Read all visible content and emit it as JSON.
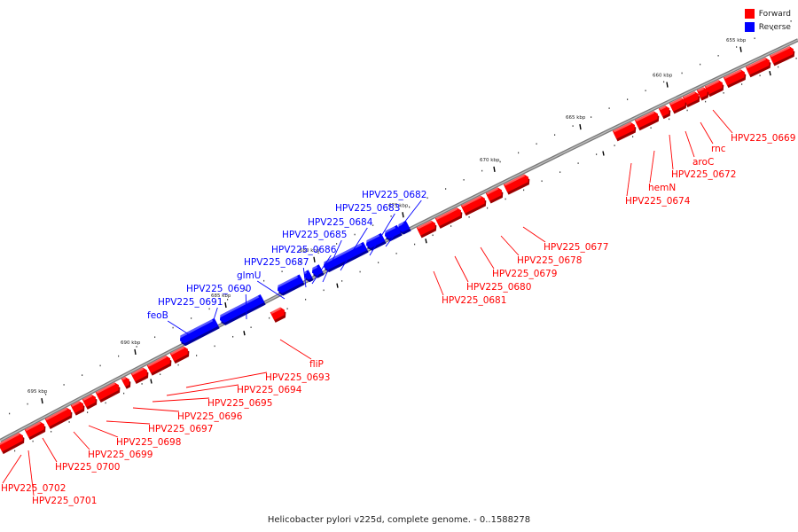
{
  "legend": {
    "forward_label": "Forward",
    "reverse_label": "Reverse",
    "forward_color": "#ff0000",
    "reverse_color": "#0000ff"
  },
  "caption": "Helicobacter pylori v225d, complete genome. - 0..1588278",
  "ruler": {
    "unit": "kbp",
    "ticks": [
      {
        "kbp": 655,
        "label": "655 kbp"
      },
      {
        "kbp": 660,
        "label": "660 kbp"
      },
      {
        "kbp": 665,
        "label": "665 kbp"
      },
      {
        "kbp": 670,
        "label": "670 kbp"
      },
      {
        "kbp": 675,
        "label": "675 kbp"
      },
      {
        "kbp": 680,
        "label": "680 kbp"
      },
      {
        "kbp": 685,
        "label": "685 kbp"
      },
      {
        "kbp": 690,
        "label": "690 kbp"
      },
      {
        "kbp": 695,
        "label": "695 kbp"
      }
    ]
  },
  "genes": [
    {
      "label": "HPV225_0669",
      "strand": "forward"
    },
    {
      "label": "rnc",
      "strand": "forward"
    },
    {
      "label": "aroC",
      "strand": "forward"
    },
    {
      "label": "HPV225_0672",
      "strand": "forward"
    },
    {
      "label": "hemN",
      "strand": "forward"
    },
    {
      "label": "HPV225_0674",
      "strand": "forward"
    },
    {
      "label": "HPV225_0677",
      "strand": "forward"
    },
    {
      "label": "HPV225_0678",
      "strand": "forward"
    },
    {
      "label": "HPV225_0679",
      "strand": "forward"
    },
    {
      "label": "HPV225_0680",
      "strand": "forward"
    },
    {
      "label": "HPV225_0681",
      "strand": "forward"
    },
    {
      "label": "HPV225_0682",
      "strand": "reverse"
    },
    {
      "label": "HPV225_0683",
      "strand": "reverse"
    },
    {
      "label": "HPV225_0684",
      "strand": "reverse"
    },
    {
      "label": "HPV225_0685",
      "strand": "reverse"
    },
    {
      "label": "HPV225_0686",
      "strand": "reverse"
    },
    {
      "label": "HPV225_0687",
      "strand": "reverse"
    },
    {
      "label": "glmU",
      "strand": "reverse"
    },
    {
      "label": "HPV225_0690",
      "strand": "reverse"
    },
    {
      "label": "HPV225_0691",
      "strand": "reverse"
    },
    {
      "label": "feoB",
      "strand": "reverse"
    },
    {
      "label": "fliP",
      "strand": "forward"
    },
    {
      "label": "HPV225_0693",
      "strand": "forward"
    },
    {
      "label": "HPV225_0694",
      "strand": "forward"
    },
    {
      "label": "HPV225_0695",
      "strand": "forward"
    },
    {
      "label": "HPV225_0696",
      "strand": "forward"
    },
    {
      "label": "HPV225_0697",
      "strand": "forward"
    },
    {
      "label": "HPV225_0698",
      "strand": "forward"
    },
    {
      "label": "HPV225_0699",
      "strand": "forward"
    },
    {
      "label": "HPV225_0700",
      "strand": "forward"
    },
    {
      "label": "HPV225_0702",
      "strand": "forward"
    },
    {
      "label": "HPV225_0701",
      "strand": "forward"
    }
  ]
}
